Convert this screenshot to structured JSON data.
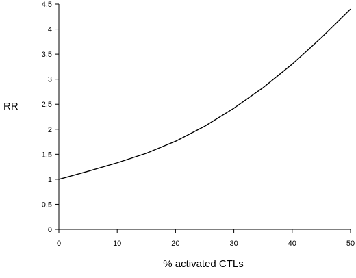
{
  "chart_data": {
    "type": "line",
    "title": "",
    "xlabel": "% activated CTLs",
    "ylabel": "RR",
    "xlim": [
      0,
      50
    ],
    "ylim": [
      0,
      4.5
    ],
    "x_ticks": [
      0,
      10,
      20,
      30,
      40,
      50
    ],
    "y_ticks": [
      0,
      0.5,
      1,
      1.5,
      2,
      2.5,
      3,
      3.5,
      4,
      4.5
    ],
    "x_tick_labels": [
      "0",
      "10",
      "20",
      "30",
      "40",
      "50"
    ],
    "y_tick_labels": [
      "0",
      "0.5",
      "1",
      "1.5",
      "2",
      "2.5",
      "3",
      "3.5",
      "4",
      "4.5"
    ],
    "grid": false,
    "series": [
      {
        "color": "#000000",
        "x": [
          0,
          5,
          10,
          15,
          20,
          25,
          30,
          35,
          40,
          45,
          50
        ],
        "y": [
          1.0,
          1.16,
          1.33,
          1.52,
          1.76,
          2.06,
          2.42,
          2.83,
          3.3,
          3.83,
          4.4
        ]
      }
    ]
  }
}
